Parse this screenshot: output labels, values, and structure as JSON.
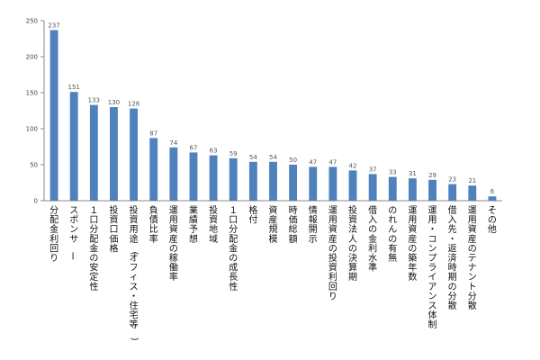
{
  "chart_data": {
    "type": "bar",
    "categories": [
      "分配金利回り",
      "スポンサー",
      "１口分配金の安定性",
      "投資口価格",
      "投資用途(オフィス・住宅等)",
      "負債比率",
      "運用資産の稼働率",
      "業績予想",
      "投資地域",
      "１口分配金の成長性",
      "格付",
      "資産規模",
      "時価総額",
      "情報開示",
      "運用資産の投資利回り",
      "投資法人の決算期",
      "借入の金利水準",
      "のれんの有無",
      "運用資産の築年数",
      "運用・コンプライアンス体制",
      "借入先・返済時期の分散",
      "運用資産のテナント分散",
      "その他"
    ],
    "values": [
      237,
      151,
      133,
      130,
      128,
      87,
      74,
      67,
      63,
      59,
      54,
      54,
      50,
      47,
      47,
      42,
      37,
      33,
      31,
      29,
      23,
      21,
      6
    ],
    "ylim": [
      0,
      250
    ],
    "yticks": [
      0,
      50,
      100,
      150,
      200,
      250
    ],
    "grid": false,
    "legend": "none",
    "colors": {
      "bar": "#4f81bd",
      "axis": "#888888"
    }
  }
}
